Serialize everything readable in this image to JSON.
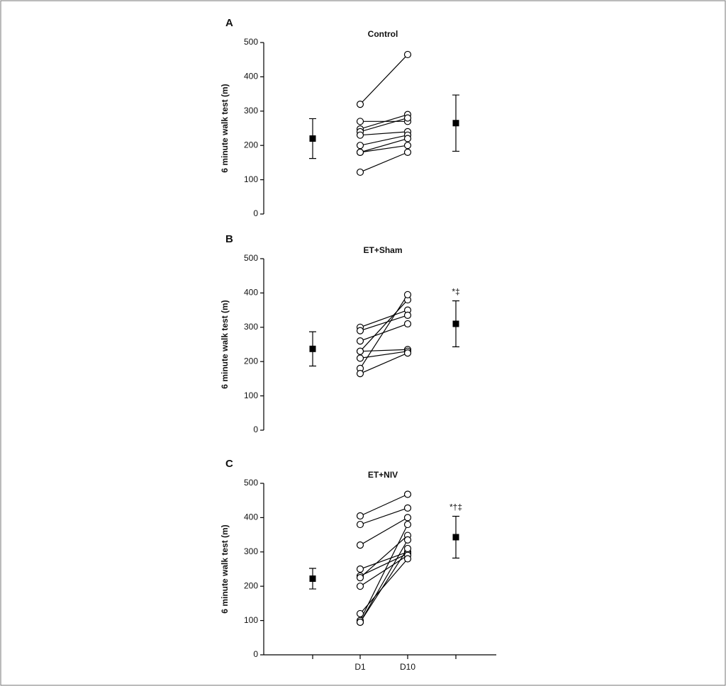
{
  "chart_data": [
    {
      "type": "paired",
      "label": "A",
      "title": "Control",
      "ylabel": "6 minute walk test (m)",
      "ylim": [
        0,
        500
      ],
      "yticks": [
        0,
        100,
        200,
        300,
        400,
        500
      ],
      "d1": [
        320,
        270,
        248,
        240,
        230,
        200,
        180,
        180,
        122
      ],
      "d10": [
        465,
        270,
        290,
        280,
        240,
        230,
        220,
        200,
        180
      ],
      "means": [
        220,
        265
      ],
      "errors": [
        58,
        82
      ]
    },
    {
      "type": "paired",
      "label": "B",
      "title": "ET+Sham",
      "ylabel": "6 minute walk test (m)",
      "ylim": [
        0,
        500
      ],
      "yticks": [
        0,
        100,
        200,
        300,
        400,
        500
      ],
      "d1": [
        300,
        290,
        260,
        230,
        230,
        210,
        180,
        165
      ],
      "d10": [
        350,
        335,
        310,
        235,
        380,
        230,
        395,
        225
      ],
      "means": [
        237,
        310
      ],
      "errors": [
        50,
        67
      ],
      "annotation": "*‡"
    },
    {
      "type": "paired",
      "label": "C",
      "title": "ET+NIV",
      "ylabel": "6 minute walk test (m)",
      "ylim": [
        0,
        500
      ],
      "yticks": [
        0,
        100,
        200,
        300,
        400,
        500
      ],
      "categories": [
        "D1",
        "D10"
      ],
      "d1": [
        405,
        380,
        320,
        250,
        230,
        225,
        200,
        120,
        100,
        95,
        95
      ],
      "d10": [
        468,
        428,
        400,
        300,
        295,
        348,
        290,
        280,
        380,
        310,
        335
      ],
      "means": [
        222,
        343
      ],
      "errors": [
        30,
        61
      ],
      "annotation": "*†‡"
    }
  ]
}
